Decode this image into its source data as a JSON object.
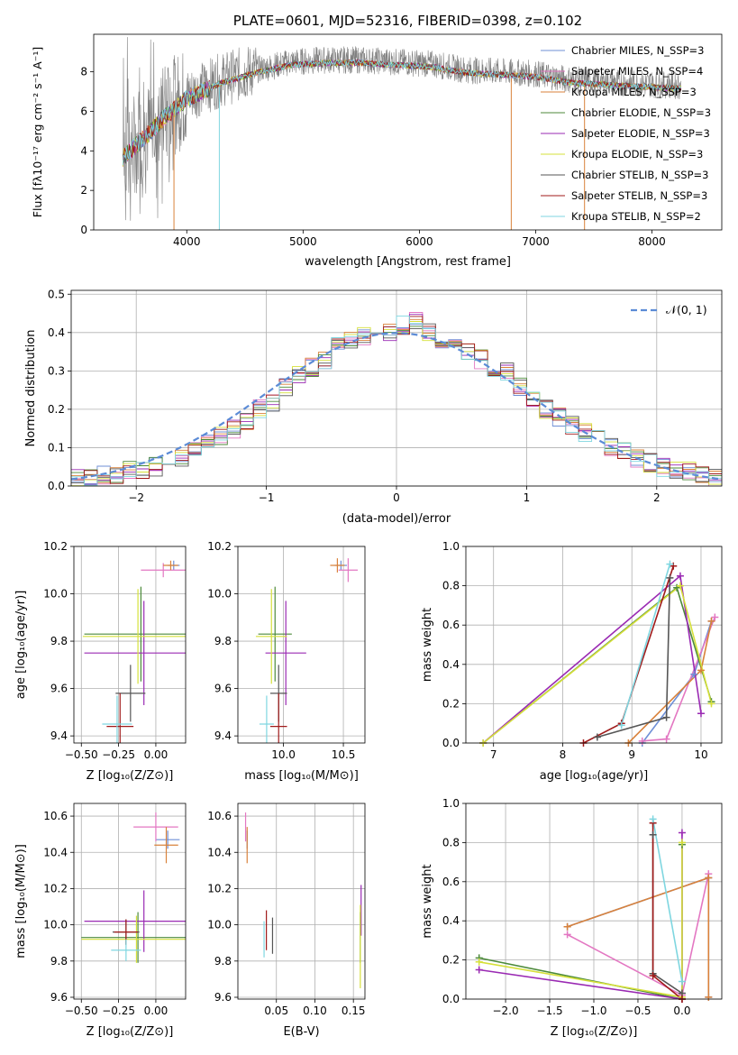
{
  "chart_data": [
    {
      "type": "line",
      "title": "PLATE=0601, MJD=52316, FIBERID=0398, z=0.102",
      "xlabel": "wavelength [Angstrom, rest frame]",
      "ylabel": "Flux [fλ10⁻¹⁷ erg cm⁻² s⁻¹ A⁻¹]",
      "xlim": [
        3200,
        8600
      ],
      "ylim": [
        0,
        9.9
      ],
      "xticks": [
        4000,
        5000,
        6000,
        7000,
        8000
      ],
      "yticks": [
        0,
        2,
        4,
        6,
        8
      ],
      "grid": false,
      "legend_position": "upper-right",
      "series": [
        {
          "name": "Chabrier MILES, N_SSP=3",
          "color": "#6f8fd6"
        },
        {
          "name": "Salpeter MILES, N_SSP=4",
          "color": "#e377c2"
        },
        {
          "name": "Kroupa MILES, N_SSP=3",
          "color": "#d9823b"
        },
        {
          "name": "Chabrier ELODIE, N_SSP=3",
          "color": "#4c8a3a"
        },
        {
          "name": "Salpeter ELODIE, N_SSP=3",
          "color": "#9a2ab3"
        },
        {
          "name": "Kroupa ELODIE, N_SSP=3",
          "color": "#d6e03a"
        },
        {
          "name": "Chabrier STELIB, N_SSP=3",
          "color": "#555555"
        },
        {
          "name": "Salpeter STELIB, N_SSP=3",
          "color": "#a01a1a"
        },
        {
          "name": "Kroupa STELIB, N_SSP=2",
          "color": "#7fd6e0"
        }
      ],
      "data_color": "#808080",
      "continuum": {
        "x": [
          3450,
          3600,
          3800,
          4000,
          4300,
          4600,
          4900,
          5200,
          5500,
          5800,
          6100,
          6400,
          6700,
          7000,
          7300,
          7600,
          7900,
          8250
        ],
        "y": [
          3.8,
          4.6,
          5.8,
          6.8,
          7.6,
          8.1,
          8.5,
          8.6,
          8.6,
          8.5,
          8.4,
          8.1,
          8.0,
          7.9,
          7.6,
          7.5,
          7.4,
          7.3
        ]
      }
    },
    {
      "type": "line",
      "xlabel": "(data-model)/error",
      "ylabel": "Normed distribution",
      "xlim": [
        -2.5,
        2.5
      ],
      "ylim": [
        0,
        0.51
      ],
      "xticks": [
        -2,
        -1,
        0,
        1,
        2
      ],
      "xtick_labels": [
        "−2",
        "−1",
        "0",
        "1",
        "2"
      ],
      "yticks": [
        0.0,
        0.1,
        0.2,
        0.3,
        0.4,
        0.5
      ],
      "grid": true,
      "legend_position": "upper-right",
      "legend": "𝒩(0, 1)",
      "gaussian_color": "#5b8bd6",
      "hist_bins": [
        -2.5,
        -2.4,
        -2.3,
        -2.2,
        -2.1,
        -2.0,
        -1.9,
        -1.8,
        -1.7,
        -1.6,
        -1.5,
        -1.4,
        -1.3,
        -1.2,
        -1.1,
        -1.0,
        -0.9,
        -0.8,
        -0.7,
        -0.6,
        -0.5,
        -0.4,
        -0.3,
        -0.2,
        -0.1,
        0.0,
        0.1,
        0.2,
        0.3,
        0.4,
        0.5,
        0.6,
        0.7,
        0.8,
        0.9,
        1.0,
        1.1,
        1.2,
        1.3,
        1.4,
        1.5,
        1.6,
        1.7,
        1.8,
        1.9,
        2.0,
        2.1,
        2.2,
        2.3,
        2.4,
        2.5
      ],
      "hist_mean": [
        0.02,
        0.02,
        0.03,
        0.03,
        0.04,
        0.04,
        0.05,
        0.06,
        0.07,
        0.09,
        0.11,
        0.13,
        0.15,
        0.17,
        0.2,
        0.22,
        0.26,
        0.29,
        0.31,
        0.33,
        0.37,
        0.38,
        0.39,
        0.39,
        0.4,
        0.42,
        0.43,
        0.4,
        0.38,
        0.37,
        0.35,
        0.33,
        0.31,
        0.3,
        0.26,
        0.23,
        0.2,
        0.18,
        0.16,
        0.14,
        0.12,
        0.1,
        0.09,
        0.07,
        0.06,
        0.05,
        0.04,
        0.04,
        0.03,
        0.02
      ]
    },
    {
      "type": "scatter",
      "xlabel": "Z [log₁₀(Z/Z⊙)]",
      "ylabel": "age  [log₁₀(age/yr)]",
      "xlim": [
        -0.55,
        0.2
      ],
      "ylim": [
        9.37,
        10.2
      ],
      "xticks": [
        -0.5,
        -0.25,
        0.0
      ],
      "xtick_labels": [
        "−0.50",
        "−0.25",
        "0.00"
      ],
      "yticks": [
        9.4,
        9.6,
        9.8,
        10.0,
        10.2
      ],
      "grid": true,
      "points": [
        {
          "series": "Chabrier MILES",
          "x": 0.12,
          "y": 10.12,
          "xerr": 0.04,
          "yerr": 0.02,
          "color": "#6f8fd6"
        },
        {
          "series": "Salpeter MILES",
          "x": 0.05,
          "y": 10.1,
          "xerr": 0.15,
          "yerr": 0.03,
          "color": "#e377c2"
        },
        {
          "series": "Kroupa MILES",
          "x": 0.1,
          "y": 10.12,
          "xerr": 0.05,
          "yerr": 0.02,
          "color": "#d9823b"
        },
        {
          "series": "Chabrier ELODIE",
          "x": -0.1,
          "y": 9.83,
          "xerr": 0.38,
          "yerr": 0.2,
          "color": "#4c8a3a"
        },
        {
          "series": "Salpeter ELODIE",
          "x": -0.08,
          "y": 9.75,
          "xerr": 0.4,
          "yerr": 0.22,
          "color": "#9a2ab3"
        },
        {
          "series": "Kroupa ELODIE",
          "x": -0.12,
          "y": 9.82,
          "xerr": 0.37,
          "yerr": 0.2,
          "color": "#d6e03a"
        },
        {
          "series": "Chabrier STELIB",
          "x": -0.17,
          "y": 9.58,
          "xerr": 0.1,
          "yerr": 0.12,
          "color": "#555555"
        },
        {
          "series": "Salpeter STELIB",
          "x": -0.24,
          "y": 9.44,
          "xerr": 0.09,
          "yerr": 0.14,
          "color": "#a01a1a"
        },
        {
          "series": "Kroupa STELIB",
          "x": -0.26,
          "y": 9.45,
          "xerr": 0.1,
          "yerr": 0.12,
          "color": "#7fd6e0"
        }
      ]
    },
    {
      "type": "scatter",
      "xlabel": "mass [log₁₀(M/M⊙)]",
      "xlim": [
        9.62,
        10.68
      ],
      "ylim": [
        9.37,
        10.2
      ],
      "xticks": [
        10.0,
        10.5
      ],
      "xtick_labels": [
        "10.0",
        "10.5"
      ],
      "yticks": [
        9.4,
        9.6,
        9.8,
        10.0,
        10.2
      ],
      "grid": true,
      "points": [
        {
          "series": "Chabrier MILES",
          "x": 10.48,
          "y": 10.12,
          "xerr": 0.05,
          "yerr": 0.02,
          "color": "#6f8fd6"
        },
        {
          "series": "Salpeter MILES",
          "x": 10.54,
          "y": 10.1,
          "xerr": 0.08,
          "yerr": 0.05,
          "color": "#e377c2"
        },
        {
          "series": "Kroupa MILES",
          "x": 10.45,
          "y": 10.12,
          "xerr": 0.06,
          "yerr": 0.03,
          "color": "#d9823b"
        },
        {
          "series": "Chabrier ELODIE",
          "x": 9.93,
          "y": 9.83,
          "xerr": 0.14,
          "yerr": 0.2,
          "color": "#4c8a3a"
        },
        {
          "series": "Salpeter ELODIE",
          "x": 10.02,
          "y": 9.75,
          "xerr": 0.17,
          "yerr": 0.22,
          "color": "#9a2ab3"
        },
        {
          "series": "Kroupa ELODIE",
          "x": 9.9,
          "y": 9.82,
          "xerr": 0.13,
          "yerr": 0.2,
          "color": "#d6e03a"
        },
        {
          "series": "Chabrier STELIB",
          "x": 9.96,
          "y": 9.58,
          "xerr": 0.07,
          "yerr": 0.12,
          "color": "#555555"
        },
        {
          "series": "Salpeter STELIB",
          "x": 9.96,
          "y": 9.44,
          "xerr": 0.07,
          "yerr": 0.14,
          "color": "#a01a1a"
        },
        {
          "series": "Kroupa STELIB",
          "x": 9.86,
          "y": 9.45,
          "xerr": 0.06,
          "yerr": 0.12,
          "color": "#7fd6e0"
        }
      ]
    },
    {
      "type": "line",
      "xlabel": "age  [log₁₀(age/yr)]",
      "ylabel": "mass weight",
      "xlim": [
        6.6,
        10.3
      ],
      "ylim": [
        0,
        1.0
      ],
      "xticks": [
        7,
        8,
        9,
        10
      ],
      "yticks": [
        0.0,
        0.2,
        0.4,
        0.6,
        0.8,
        1.0
      ],
      "grid": true,
      "series": [
        {
          "name": "Chabrier MILES",
          "color": "#6f8fd6",
          "x": [
            9.15,
            9.9,
            10.15
          ],
          "y": [
            0.0,
            0.35,
            0.62
          ]
        },
        {
          "name": "Salpeter MILES",
          "color": "#e377c2",
          "x": [
            9.15,
            9.5,
            10.2
          ],
          "y": [
            0.01,
            0.02,
            0.64
          ]
        },
        {
          "name": "Kroupa MILES",
          "color": "#d9823b",
          "x": [
            8.95,
            10.0,
            10.15
          ],
          "y": [
            0.0,
            0.37,
            0.62
          ]
        },
        {
          "name": "Chabrier ELODIE",
          "color": "#4c8a3a",
          "x": [
            6.85,
            9.65,
            10.15
          ],
          "y": [
            0.0,
            0.79,
            0.21
          ]
        },
        {
          "name": "Salpeter ELODIE",
          "color": "#9a2ab3",
          "x": [
            6.85,
            9.7,
            10.0
          ],
          "y": [
            0.0,
            0.85,
            0.15
          ]
        },
        {
          "name": "Kroupa ELODIE",
          "color": "#d6e03a",
          "x": [
            6.85,
            9.7,
            10.15
          ],
          "y": [
            0.0,
            0.8,
            0.2
          ]
        },
        {
          "name": "Chabrier STELIB",
          "color": "#555555",
          "x": [
            8.5,
            9.5,
            9.55
          ],
          "y": [
            0.03,
            0.13,
            0.84
          ]
        },
        {
          "name": "Salpeter STELIB",
          "color": "#a01a1a",
          "x": [
            8.3,
            8.85,
            9.6
          ],
          "y": [
            0.0,
            0.1,
            0.9
          ]
        },
        {
          "name": "Kroupa STELIB",
          "color": "#7fd6e0",
          "x": [
            8.85,
            9.55
          ],
          "y": [
            0.09,
            0.91
          ]
        }
      ]
    },
    {
      "type": "scatter",
      "xlabel": "Z [log₁₀(Z/Z⊙)]",
      "ylabel": "mass [log₁₀(M/M⊙)]",
      "xlim": [
        -0.55,
        0.2
      ],
      "ylim": [
        9.59,
        10.67
      ],
      "xticks": [
        -0.5,
        -0.25,
        0.0
      ],
      "xtick_labels": [
        "−0.50",
        "−0.25",
        "0.00"
      ],
      "yticks": [
        9.6,
        9.8,
        10.0,
        10.2,
        10.4,
        10.6
      ],
      "grid": true,
      "points": [
        {
          "series": "Chabrier MILES",
          "x": 0.08,
          "y": 10.47,
          "xerr": 0.08,
          "yerr": 0.05,
          "color": "#6f8fd6"
        },
        {
          "series": "Salpeter MILES",
          "x": 0.0,
          "y": 10.54,
          "xerr": 0.15,
          "yerr": 0.08,
          "color": "#e377c2"
        },
        {
          "series": "Kroupa MILES",
          "x": 0.07,
          "y": 10.44,
          "xerr": 0.08,
          "yerr": 0.1,
          "color": "#d9823b"
        },
        {
          "series": "Chabrier ELODIE",
          "x": -0.12,
          "y": 9.93,
          "xerr": 0.38,
          "yerr": 0.14,
          "color": "#4c8a3a"
        },
        {
          "series": "Salpeter ELODIE",
          "x": -0.08,
          "y": 10.02,
          "xerr": 0.4,
          "yerr": 0.17,
          "color": "#9a2ab3"
        },
        {
          "series": "Kroupa ELODIE",
          "x": -0.13,
          "y": 9.92,
          "xerr": 0.37,
          "yerr": 0.13,
          "color": "#d6e03a"
        },
        {
          "series": "Chabrier STELIB",
          "x": -0.2,
          "y": 9.96,
          "xerr": 0.09,
          "yerr": 0.07,
          "color": "#555555"
        },
        {
          "series": "Salpeter STELIB",
          "x": -0.2,
          "y": 9.96,
          "xerr": 0.08,
          "yerr": 0.07,
          "color": "#a01a1a"
        },
        {
          "series": "Kroupa STELIB",
          "x": -0.2,
          "y": 9.86,
          "xerr": 0.1,
          "yerr": 0.06,
          "color": "#7fd6e0"
        }
      ]
    },
    {
      "type": "scatter",
      "xlabel": "E(B-V)",
      "xlim": [
        0.0,
        0.165
      ],
      "ylim": [
        9.59,
        10.67
      ],
      "xticks": [
        0.05,
        0.1,
        0.15
      ],
      "xtick_labels": [
        "0.05",
        "0.10",
        "0.15"
      ],
      "yticks": [
        9.6,
        9.8,
        10.0,
        10.2,
        10.4,
        10.6
      ],
      "grid": true,
      "points": [
        {
          "series": "Chabrier MILES",
          "x": 0.012,
          "y": 10.47,
          "xerr": 0.0,
          "yerr": 0.05,
          "color": "#6f8fd6"
        },
        {
          "series": "Salpeter MILES",
          "x": 0.01,
          "y": 10.54,
          "xerr": 0.0,
          "yerr": 0.08,
          "color": "#e377c2"
        },
        {
          "series": "Kroupa MILES",
          "x": 0.012,
          "y": 10.44,
          "xerr": 0.0,
          "yerr": 0.1,
          "color": "#d9823b"
        },
        {
          "series": "Chabrier ELODIE",
          "x": 0.159,
          "y": 9.93,
          "xerr": 0.0,
          "yerr": 0.14,
          "color": "#4c8a3a"
        },
        {
          "series": "Salpeter ELODIE",
          "x": 0.16,
          "y": 10.08,
          "xerr": 0.0,
          "yerr": 0.14,
          "color": "#9a2ab3"
        },
        {
          "series": "Kroupa ELODIE",
          "x": 0.159,
          "y": 9.88,
          "xerr": 0.0,
          "yerr": 0.23,
          "color": "#d6e03a"
        },
        {
          "series": "Chabrier STELIB",
          "x": 0.045,
          "y": 9.94,
          "xerr": 0.0,
          "yerr": 0.1,
          "color": "#555555"
        },
        {
          "series": "Salpeter STELIB",
          "x": 0.037,
          "y": 9.97,
          "xerr": 0.0,
          "yerr": 0.11,
          "color": "#a01a1a"
        },
        {
          "series": "Kroupa STELIB",
          "x": 0.034,
          "y": 9.92,
          "xerr": 0.0,
          "yerr": 0.1,
          "color": "#7fd6e0"
        }
      ]
    },
    {
      "type": "line",
      "xlabel": "Z [log₁₀(Z/Z⊙)]",
      "ylabel": "mass weight",
      "xlim": [
        -2.45,
        0.45
      ],
      "ylim": [
        0,
        1.0
      ],
      "xticks": [
        -2.0,
        -1.5,
        -1.0,
        -0.5,
        0.0
      ],
      "xtick_labels": [
        "−2.0",
        "−1.5",
        "−1.0",
        "−0.5",
        "0.0"
      ],
      "yticks": [
        0.0,
        0.2,
        0.4,
        0.6,
        0.8,
        1.0
      ],
      "grid": true,
      "series": [
        {
          "name": "Chabrier MILES",
          "color": "#6f8fd6",
          "x": [
            -1.3,
            0.3,
            0.3
          ],
          "y": [
            0.37,
            0.62,
            0.01
          ]
        },
        {
          "name": "Salpeter MILES",
          "color": "#e377c2",
          "x": [
            -1.3,
            0.0,
            0.3
          ],
          "y": [
            0.33,
            0.02,
            0.64
          ]
        },
        {
          "name": "Kroupa MILES",
          "color": "#d9823b",
          "x": [
            -1.3,
            0.3,
            0.3
          ],
          "y": [
            0.37,
            0.62,
            0.01
          ]
        },
        {
          "name": "Chabrier ELODIE",
          "color": "#4c8a3a",
          "x": [
            -2.3,
            0.0,
            0.0
          ],
          "y": [
            0.21,
            0.0,
            0.79
          ]
        },
        {
          "name": "Salpeter ELODIE",
          "color": "#9a2ab3",
          "x": [
            -2.3,
            0.0,
            0.0
          ],
          "y": [
            0.15,
            0.0,
            0.85
          ]
        },
        {
          "name": "Kroupa ELODIE",
          "color": "#d6e03a",
          "x": [
            -2.3,
            0.0,
            0.0
          ],
          "y": [
            0.19,
            0.01,
            0.8
          ]
        },
        {
          "name": "Chabrier STELIB",
          "color": "#555555",
          "x": [
            -0.33,
            -0.33,
            0.0
          ],
          "y": [
            0.84,
            0.13,
            0.03
          ]
        },
        {
          "name": "Salpeter STELIB",
          "color": "#a01a1a",
          "x": [
            -0.33,
            -0.33,
            0.0
          ],
          "y": [
            0.9,
            0.12,
            0.0
          ]
        },
        {
          "name": "Kroupa STELIB",
          "color": "#7fd6e0",
          "x": [
            -0.33,
            0.0
          ],
          "y": [
            0.92,
            0.09
          ]
        }
      ]
    }
  ]
}
